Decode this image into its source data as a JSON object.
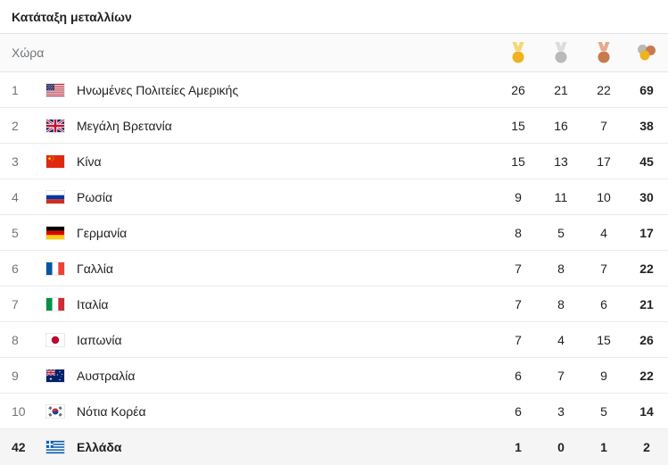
{
  "title": "Κατάταξη μεταλλίων",
  "header": {
    "country_label": "Χώρα",
    "gold_icon": "gold-medal-icon",
    "silver_icon": "silver-medal-icon",
    "bronze_icon": "bronze-medal-icon",
    "total_icon": "total-medals-icon"
  },
  "rows": [
    {
      "rank": 1,
      "flag": "usa-flag-icon",
      "country": "Ηνωμένες Πολιτείες Αμερικής",
      "gold": 26,
      "silver": 21,
      "bronze": 22,
      "total": 69
    },
    {
      "rank": 2,
      "flag": "uk-flag-icon",
      "country": "Μεγάλη Βρετανία",
      "gold": 15,
      "silver": 16,
      "bronze": 7,
      "total": 38
    },
    {
      "rank": 3,
      "flag": "china-flag-icon",
      "country": "Κίνα",
      "gold": 15,
      "silver": 13,
      "bronze": 17,
      "total": 45
    },
    {
      "rank": 4,
      "flag": "russia-flag-icon",
      "country": "Ρωσία",
      "gold": 9,
      "silver": 11,
      "bronze": 10,
      "total": 30
    },
    {
      "rank": 5,
      "flag": "germany-flag-icon",
      "country": "Γερμανία",
      "gold": 8,
      "silver": 5,
      "bronze": 4,
      "total": 17
    },
    {
      "rank": 6,
      "flag": "france-flag-icon",
      "country": "Γαλλία",
      "gold": 7,
      "silver": 8,
      "bronze": 7,
      "total": 22
    },
    {
      "rank": 7,
      "flag": "italy-flag-icon",
      "country": "Ιταλία",
      "gold": 7,
      "silver": 8,
      "bronze": 6,
      "total": 21
    },
    {
      "rank": 8,
      "flag": "japan-flag-icon",
      "country": "Ιαπωνία",
      "gold": 7,
      "silver": 4,
      "bronze": 15,
      "total": 26
    },
    {
      "rank": 9,
      "flag": "australia-flag-icon",
      "country": "Αυστραλία",
      "gold": 6,
      "silver": 7,
      "bronze": 9,
      "total": 22
    },
    {
      "rank": 10,
      "flag": "south-korea-flag-icon",
      "country": "Νότια Κορέα",
      "gold": 6,
      "silver": 3,
      "bronze": 5,
      "total": 14
    },
    {
      "rank": 42,
      "flag": "greece-flag-icon",
      "country": "Ελλάδα",
      "gold": 1,
      "silver": 0,
      "bronze": 1,
      "total": 2,
      "highlighted": true
    }
  ],
  "colors": {
    "gold_ribbon": "#f7d774",
    "gold_medal": "#efb31f",
    "silver_ribbon": "#dcdcdc",
    "silver_medal": "#b9b9b9",
    "bronze_ribbon": "#e3ab8c",
    "bronze_medal": "#c87a4c",
    "highlight_row": "#f5f5f5"
  }
}
